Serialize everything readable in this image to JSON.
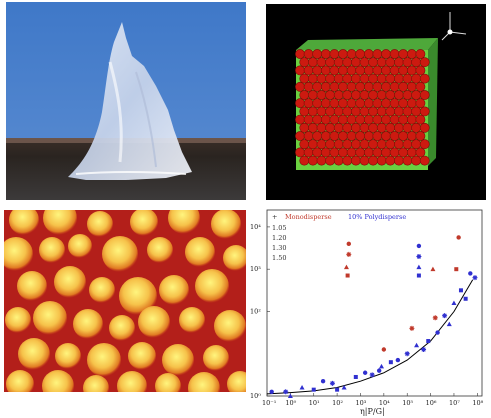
{
  "panels": [
    {
      "id": "a",
      "kind": "photo"
    },
    {
      "id": "b",
      "kind": "simulation-box"
    },
    {
      "id": "c",
      "kind": "microscopy"
    },
    {
      "id": "d",
      "kind": "plot"
    }
  ],
  "simulation": {
    "axis_labels": {
      "x": "",
      "y": "",
      "z": ""
    },
    "colors": {
      "particle": "#cc1a10",
      "box": "#6ad040",
      "background": "#000000"
    }
  },
  "microscopy": {
    "colors": {
      "low": "#b01818",
      "mid": "#e87a1e",
      "high": "#fff27a"
    }
  },
  "legend": {
    "header_symbol": "+",
    "left_title": "Monodisperse",
    "right_title": "10% Polydisperse",
    "rows": [
      "1.05",
      "1.20",
      "1.30",
      "1.50"
    ]
  },
  "chart_data": {
    "type": "scatter",
    "title": "",
    "xlabel": "η|P/G|",
    "ylabel": "",
    "xscale": "log",
    "yscale": "log",
    "x_ticks": [
      "10⁻¹",
      "10⁰",
      "10¹",
      "10²",
      "10³",
      "10⁴",
      "10⁵",
      "10⁶",
      "10⁷",
      "10⁸"
    ],
    "y_ticks": [
      "10⁴",
      "10³",
      "10²",
      "10⁰"
    ],
    "xlim": [
      -1,
      8.2
    ],
    "ylim": [
      0,
      4.4
    ],
    "series": [
      {
        "name": "Monodisperse",
        "color": "#c0392b",
        "marker": "mixed",
        "points": [
          [
            2.5,
            3.6
          ],
          [
            2.5,
            3.35
          ],
          [
            2.4,
            3.05
          ],
          [
            2.45,
            2.85
          ],
          [
            7.2,
            3.75
          ],
          [
            5.2,
            1.6
          ],
          [
            6.1,
            3.0
          ],
          [
            7.1,
            3.0
          ],
          [
            4.0,
            1.1
          ],
          [
            6.2,
            1.85
          ]
        ]
      },
      {
        "name": "10% Polydisperse",
        "color": "#3030d0",
        "marker": "mixed",
        "points": [
          [
            5.5,
            3.55
          ],
          [
            5.5,
            3.3
          ],
          [
            5.5,
            3.05
          ],
          [
            5.5,
            2.85
          ],
          [
            -0.8,
            0.1
          ],
          [
            -0.2,
            0.1
          ],
          [
            0.5,
            0.2
          ],
          [
            1.0,
            0.15
          ],
          [
            1.4,
            0.35
          ],
          [
            1.8,
            0.3
          ],
          [
            2.3,
            0.2
          ],
          [
            2.8,
            0.45
          ],
          [
            3.2,
            0.55
          ],
          [
            3.5,
            0.5
          ],
          [
            3.9,
            0.7
          ],
          [
            4.3,
            0.8
          ],
          [
            4.6,
            0.85
          ],
          [
            5.0,
            1.0
          ],
          [
            5.4,
            1.2
          ],
          [
            5.9,
            1.3
          ],
          [
            6.3,
            1.5
          ],
          [
            6.6,
            1.9
          ],
          [
            7.0,
            2.2
          ],
          [
            7.3,
            2.5
          ],
          [
            7.7,
            2.9
          ],
          [
            7.9,
            2.8
          ],
          [
            0.0,
            0.0
          ],
          [
            2.0,
            0.15
          ],
          [
            3.8,
            0.6
          ],
          [
            5.7,
            1.1
          ],
          [
            6.8,
            1.7
          ],
          [
            7.5,
            2.3
          ]
        ]
      }
    ],
    "fit_curve": {
      "color": "#000000",
      "x": [
        -1,
        0,
        1,
        2,
        3,
        4,
        5,
        6,
        7,
        7.8
      ],
      "y": [
        0.05,
        0.08,
        0.12,
        0.2,
        0.35,
        0.55,
        0.85,
        1.3,
        2.0,
        2.75
      ]
    }
  }
}
